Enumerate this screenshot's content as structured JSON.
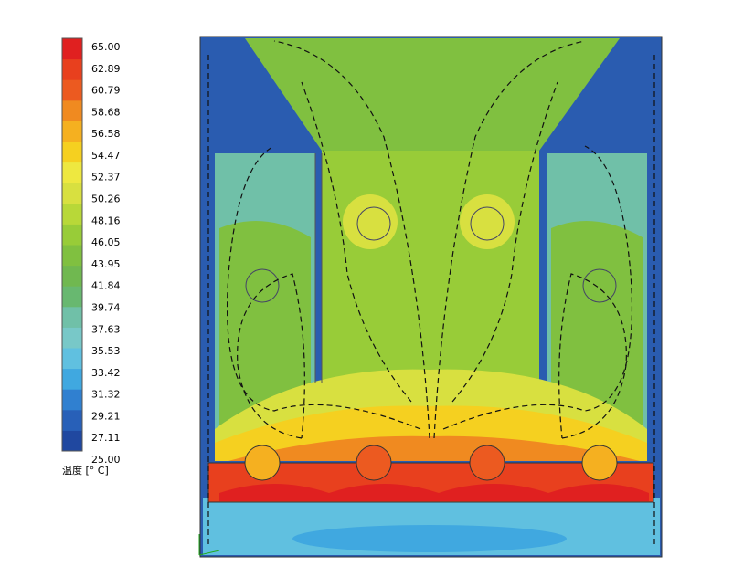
{
  "legend": {
    "ticks": [
      "65.00",
      "62.89",
      "60.79",
      "58.68",
      "56.58",
      "54.47",
      "52.37",
      "50.26",
      "48.16",
      "46.05",
      "43.95",
      "41.84",
      "39.74",
      "37.63",
      "35.53",
      "33.42",
      "31.32",
      "29.21",
      "27.11",
      "25.00"
    ],
    "colors": [
      "#e02020",
      "#e8401e",
      "#ec5a20",
      "#f08a20",
      "#f5b020",
      "#f5d020",
      "#eee840",
      "#d8e040",
      "#b8d838",
      "#98cc38",
      "#80c040",
      "#70b850",
      "#68b870",
      "#70c0a8",
      "#78c8c8",
      "#60c0e0",
      "#40a8e0",
      "#3080d0",
      "#2860b8",
      "#2048a0"
    ],
    "unit_label": "温度 [° C]"
  }
}
